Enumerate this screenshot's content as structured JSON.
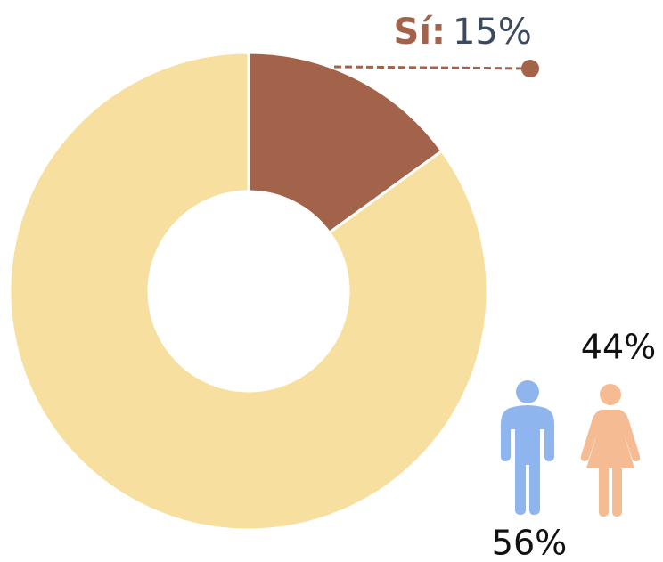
{
  "chart_data": {
    "type": "donut",
    "categories": [
      "Sí:",
      null
    ],
    "values": [
      15,
      85
    ],
    "value_labels": [
      "15%",
      null
    ],
    "colors": [
      "#a3634b",
      "#f7df9f"
    ],
    "label_color": "#3b4a5d"
  },
  "gender": {
    "values": [
      56,
      44
    ],
    "value_labels": [
      "56%",
      "44%"
    ],
    "colors": [
      "#8fb5ef",
      "#f5bb92"
    ]
  }
}
